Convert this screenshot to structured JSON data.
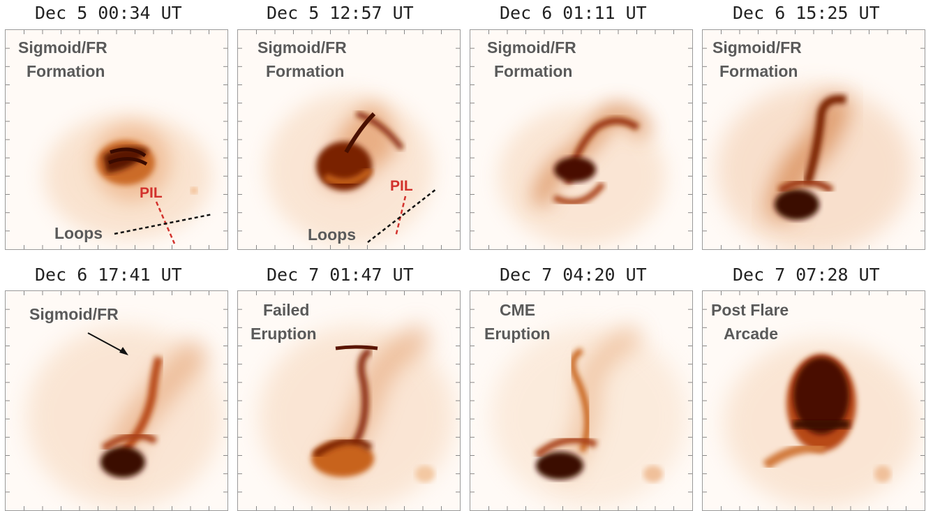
{
  "panels": [
    {
      "time": "Dec 5 00:34 UT",
      "label_lines": [
        "Sigmoid/FR",
        "Formation"
      ],
      "pil": "PIL",
      "loops": "Loops"
    },
    {
      "time": "Dec 5 12:57 UT",
      "label_lines": [
        "Sigmoid/FR",
        "Formation"
      ],
      "pil": "PIL",
      "loops": "Loops"
    },
    {
      "time": "Dec 6 01:11 UT",
      "label_lines": [
        "Sigmoid/FR",
        "Formation"
      ]
    },
    {
      "time": "Dec 6 15:25 UT",
      "label_lines": [
        "Sigmoid/FR",
        "Formation"
      ]
    },
    {
      "time": "Dec 6 17:41 UT",
      "label_lines": [
        "Sigmoid/FR"
      ]
    },
    {
      "time": "Dec 7 01:47 UT",
      "label_lines": [
        "Failed",
        "Eruption"
      ]
    },
    {
      "time": "Dec 7 04:20 UT",
      "label_lines": [
        "CME",
        "Eruption"
      ]
    },
    {
      "time": "Dec 7 07:28 UT",
      "label_lines": [
        "Post Flare",
        "Arcade"
      ]
    }
  ],
  "colors": {
    "annotation_red": "#d2322d",
    "label_gray": "#5a5a5a",
    "emission_dark": "#3a0a00",
    "emission_mid": "#c8641e",
    "background": "#fffaf6"
  }
}
